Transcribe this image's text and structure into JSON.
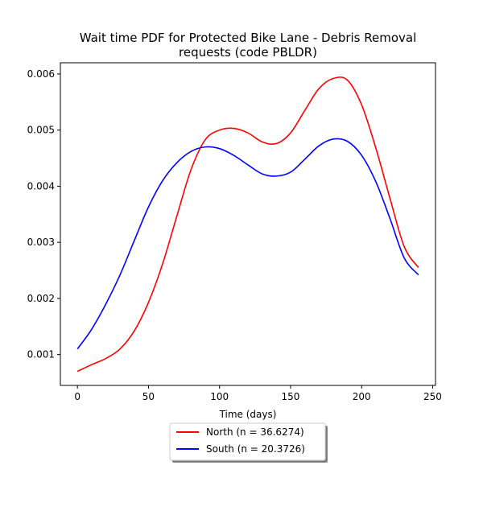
{
  "chart_data": {
    "type": "line",
    "title_lines": [
      "Wait time PDF for Protected Bike Lane - Debris Removal",
      "requests (code PBLDR)"
    ],
    "xlabel": "Time (days)",
    "ylabel": "",
    "xlim": [
      -12,
      252
    ],
    "ylim": [
      0.00045,
      0.0062
    ],
    "xticks": [
      0,
      50,
      100,
      150,
      200,
      250
    ],
    "yticks": [
      0.001,
      0.002,
      0.003,
      0.004,
      0.005,
      0.006
    ],
    "ytick_labels": [
      "0.001",
      "0.002",
      "0.003",
      "0.004",
      "0.005",
      "0.006"
    ],
    "grid": false,
    "legend_position": "below-center",
    "series": [
      {
        "name": "North (n = 36.6274)",
        "color": "#ff0000",
        "x": [
          0,
          10,
          20,
          30,
          40,
          50,
          60,
          70,
          80,
          90,
          100,
          110,
          120,
          130,
          140,
          150,
          160,
          170,
          180,
          190,
          200,
          210,
          220,
          230,
          240
        ],
        "y": [
          0.0007,
          0.00082,
          0.00093,
          0.0011,
          0.00142,
          0.00193,
          0.00262,
          0.00347,
          0.0043,
          0.00483,
          0.005,
          0.00503,
          0.00495,
          0.00479,
          0.00476,
          0.00495,
          0.00535,
          0.00574,
          0.00592,
          0.00589,
          0.00545,
          0.00468,
          0.00378,
          0.00292,
          0.00255
        ]
      },
      {
        "name": "South (n = 20.3726)",
        "color": "#0000ff",
        "x": [
          0,
          10,
          20,
          30,
          40,
          50,
          60,
          70,
          80,
          90,
          100,
          110,
          120,
          130,
          140,
          150,
          160,
          170,
          180,
          190,
          200,
          210,
          220,
          230,
          240
        ],
        "y": [
          0.0011,
          0.00145,
          0.0019,
          0.00242,
          0.00303,
          0.00363,
          0.0041,
          0.00442,
          0.00462,
          0.0047,
          0.00467,
          0.00455,
          0.00438,
          0.00422,
          0.00418,
          0.00425,
          0.00448,
          0.00472,
          0.00484,
          0.0048,
          0.00455,
          0.00408,
          0.00342,
          0.00272,
          0.00242
        ]
      }
    ]
  }
}
